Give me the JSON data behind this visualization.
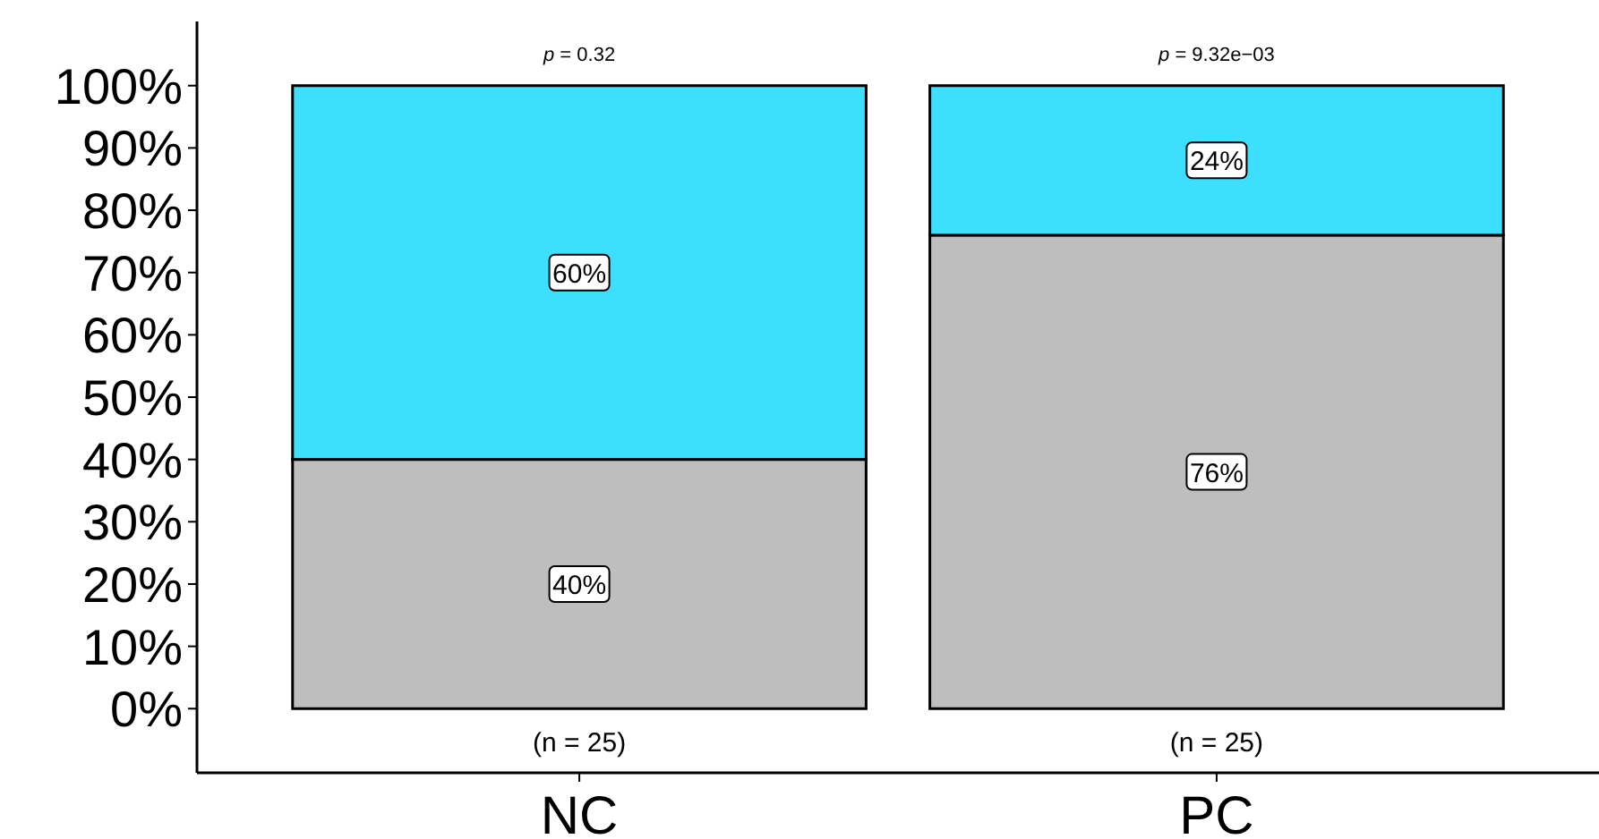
{
  "chart_data": {
    "type": "bar",
    "stacked": true,
    "categories": [
      "NC",
      "PC"
    ],
    "series": [
      {
        "color": "#bebebe",
        "values": [
          40,
          76
        ],
        "value_labels": [
          "40%",
          "76%"
        ]
      },
      {
        "color": "#3ddfff",
        "values": [
          60,
          24
        ],
        "value_labels": [
          "60%",
          "24%"
        ]
      }
    ],
    "ylim": [
      -10.3,
      110.3
    ],
    "yticks": [
      {
        "value": 0,
        "label": "0%"
      },
      {
        "value": 10,
        "label": "10%"
      },
      {
        "value": 20,
        "label": "20%"
      },
      {
        "value": 30,
        "label": "30%"
      },
      {
        "value": 40,
        "label": "40%"
      },
      {
        "value": 50,
        "label": "50%"
      },
      {
        "value": 60,
        "label": "60%"
      },
      {
        "value": 70,
        "label": "70%"
      },
      {
        "value": 80,
        "label": "80%"
      },
      {
        "value": 90,
        "label": "90%"
      },
      {
        "value": 100,
        "label": "100%"
      }
    ],
    "grid": false,
    "annotations": [
      {
        "text": "p = 0.32",
        "x": "NC",
        "y": 100
      },
      {
        "text": "p = 9.32e−03",
        "x": "PC",
        "y": 100
      },
      {
        "text": "(n = 25)",
        "x": "NC",
        "y": 0
      },
      {
        "text": "(n = 25)",
        "x": "PC",
        "y": 0
      }
    ]
  }
}
